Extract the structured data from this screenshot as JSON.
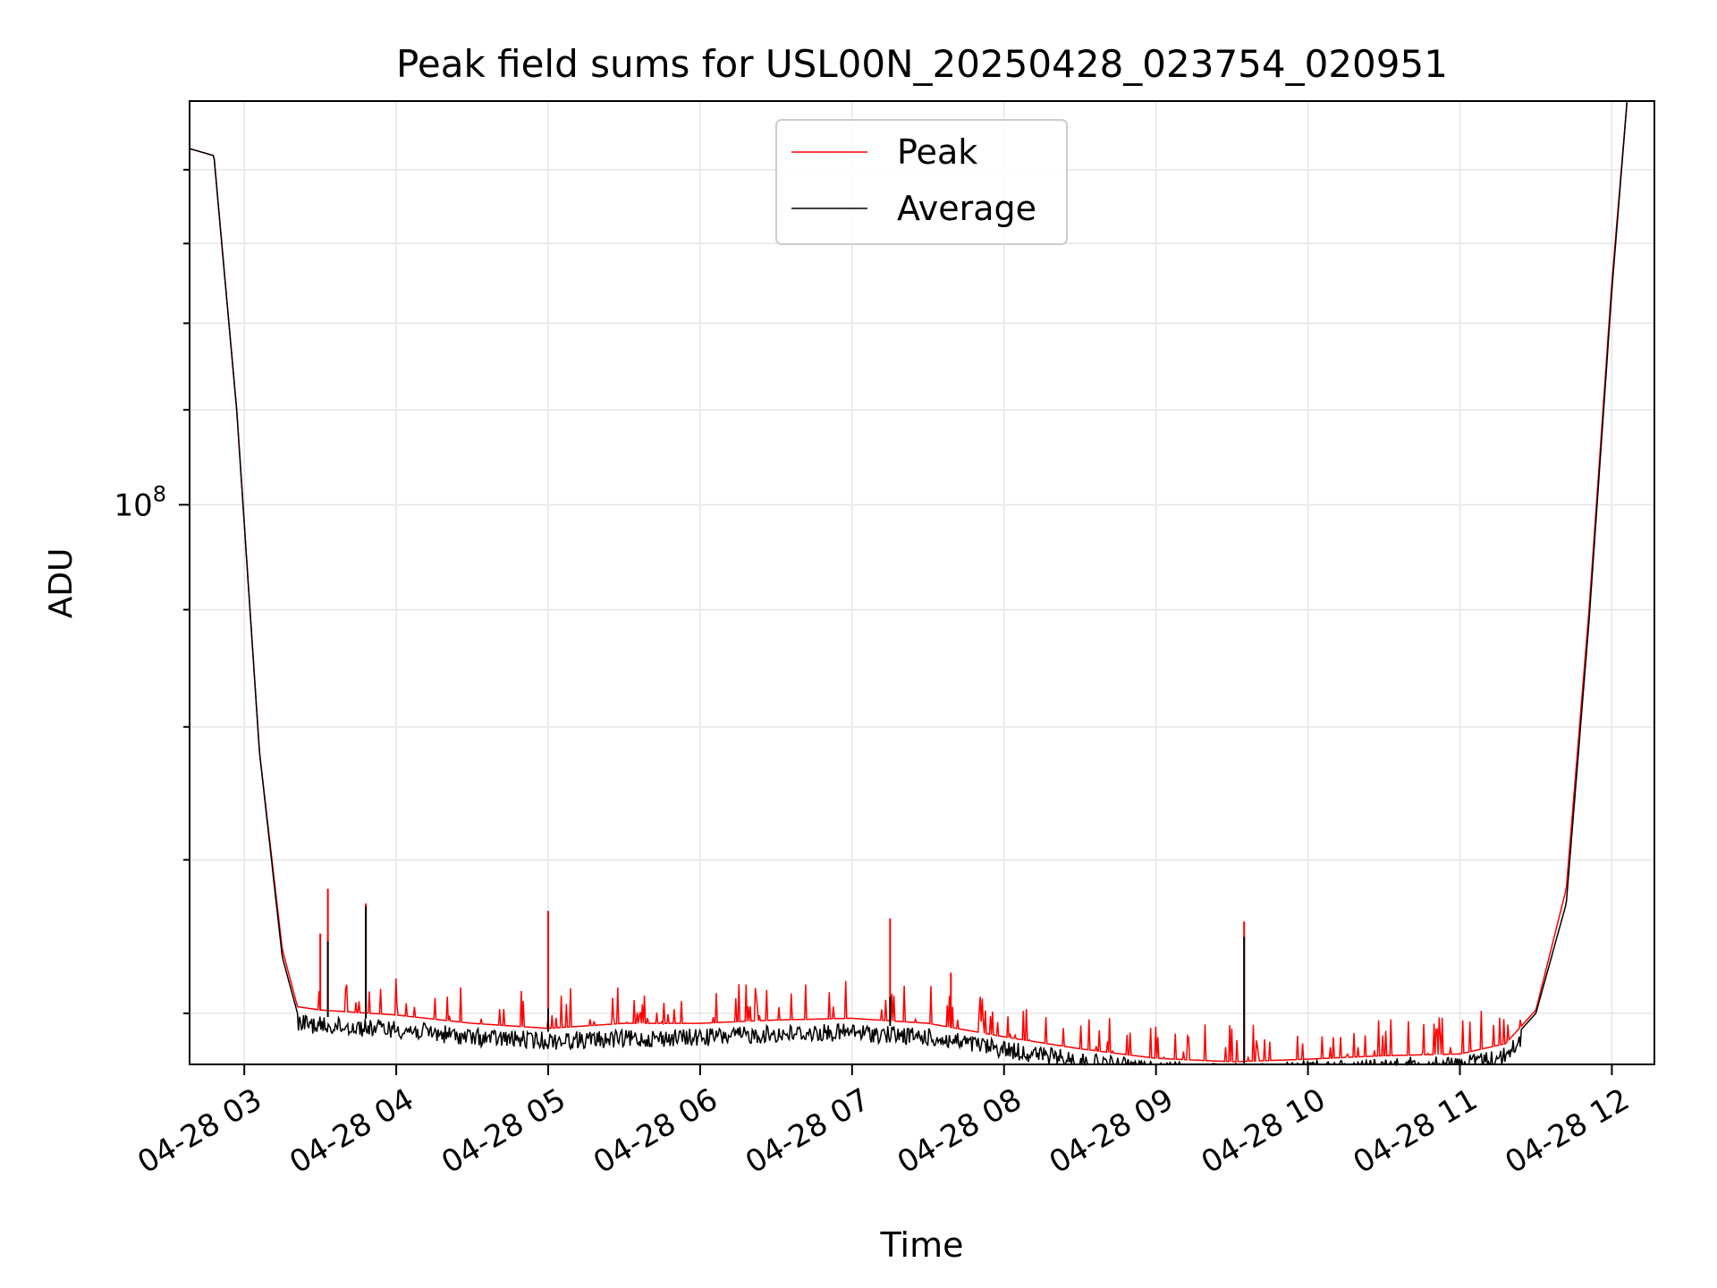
{
  "chart_data": {
    "type": "line",
    "title": "Peak field sums for USL00N_20250428_023754_020951",
    "xlabel": "Time",
    "ylabel": "ADU",
    "x_ticks": [
      "04-28 03",
      "04-28 04",
      "04-28 05",
      "04-28 06",
      "04-28 07",
      "04-28 08",
      "04-28 09",
      "04-28 10",
      "04-28 11",
      "04-28 12"
    ],
    "y_ticks": [
      {
        "base": "10",
        "exp": "8",
        "value": 100000000
      }
    ],
    "x_range_hours": [
      2.64,
      12.28
    ],
    "y_range": [
      57000000,
      150000000
    ],
    "y_scale": "log",
    "grid": true,
    "legend": {
      "placement": "upper center",
      "entries": [
        "Peak",
        "Average"
      ]
    },
    "series": [
      {
        "name": "Peak",
        "color": "#ff0000",
        "baseline": [
          [
            2.64,
            143000000
          ],
          [
            2.8,
            142000000
          ],
          [
            2.95,
            110000000
          ],
          [
            3.1,
            78000000
          ],
          [
            3.25,
            64000000
          ],
          [
            3.35,
            60400000
          ],
          [
            3.5,
            60200000
          ],
          [
            4.0,
            59900000
          ],
          [
            4.5,
            59400000
          ],
          [
            5.0,
            59100000
          ],
          [
            5.5,
            59400000
          ],
          [
            6.0,
            59400000
          ],
          [
            6.5,
            59600000
          ],
          [
            7.0,
            59700000
          ],
          [
            7.5,
            59400000
          ],
          [
            8.0,
            58600000
          ],
          [
            8.5,
            57900000
          ],
          [
            9.0,
            57350000
          ],
          [
            9.5,
            57150000
          ],
          [
            10.0,
            57300000
          ],
          [
            10.5,
            57500000
          ],
          [
            11.0,
            57600000
          ],
          [
            11.3,
            58200000
          ],
          [
            11.5,
            60200000
          ],
          [
            11.7,
            68000000
          ],
          [
            11.85,
            90000000
          ],
          [
            12.0,
            125000000
          ],
          [
            12.1,
            150000000
          ]
        ],
        "spikes": [
          [
            3.5,
            65000000
          ],
          [
            3.55,
            68000000
          ],
          [
            3.8,
            67000000
          ],
          [
            5.0,
            66500000
          ],
          [
            7.25,
            66000000
          ],
          [
            7.65,
            62500000
          ],
          [
            9.58,
            65800000
          ]
        ]
      },
      {
        "name": "Average",
        "color": "#000000",
        "baseline": [
          [
            2.64,
            143000000
          ],
          [
            2.8,
            142000000
          ],
          [
            2.95,
            110000000
          ],
          [
            3.1,
            78000000
          ],
          [
            3.25,
            63500000
          ],
          [
            3.35,
            60000000
          ],
          [
            3.5,
            59800000
          ],
          [
            4.0,
            59600000
          ],
          [
            4.5,
            59100000
          ],
          [
            5.0,
            58900000
          ],
          [
            5.5,
            59000000
          ],
          [
            6.0,
            59100000
          ],
          [
            6.5,
            59300000
          ],
          [
            7.0,
            59400000
          ],
          [
            7.5,
            59100000
          ],
          [
            8.0,
            58400000
          ],
          [
            8.5,
            57700000
          ],
          [
            9.0,
            57200000
          ],
          [
            9.5,
            57050000
          ],
          [
            10.0,
            57200000
          ],
          [
            10.5,
            57400000
          ],
          [
            11.0,
            57500000
          ],
          [
            11.3,
            58000000
          ],
          [
            11.5,
            60000000
          ],
          [
            11.7,
            67000000
          ],
          [
            11.85,
            89000000
          ],
          [
            12.0,
            124000000
          ],
          [
            12.1,
            150000000
          ]
        ],
        "spikes": [
          [
            3.55,
            64500000
          ],
          [
            3.8,
            66800000
          ],
          [
            5.0,
            60300000
          ],
          [
            7.25,
            61000000
          ],
          [
            9.58,
            64800000
          ]
        ]
      }
    ]
  }
}
